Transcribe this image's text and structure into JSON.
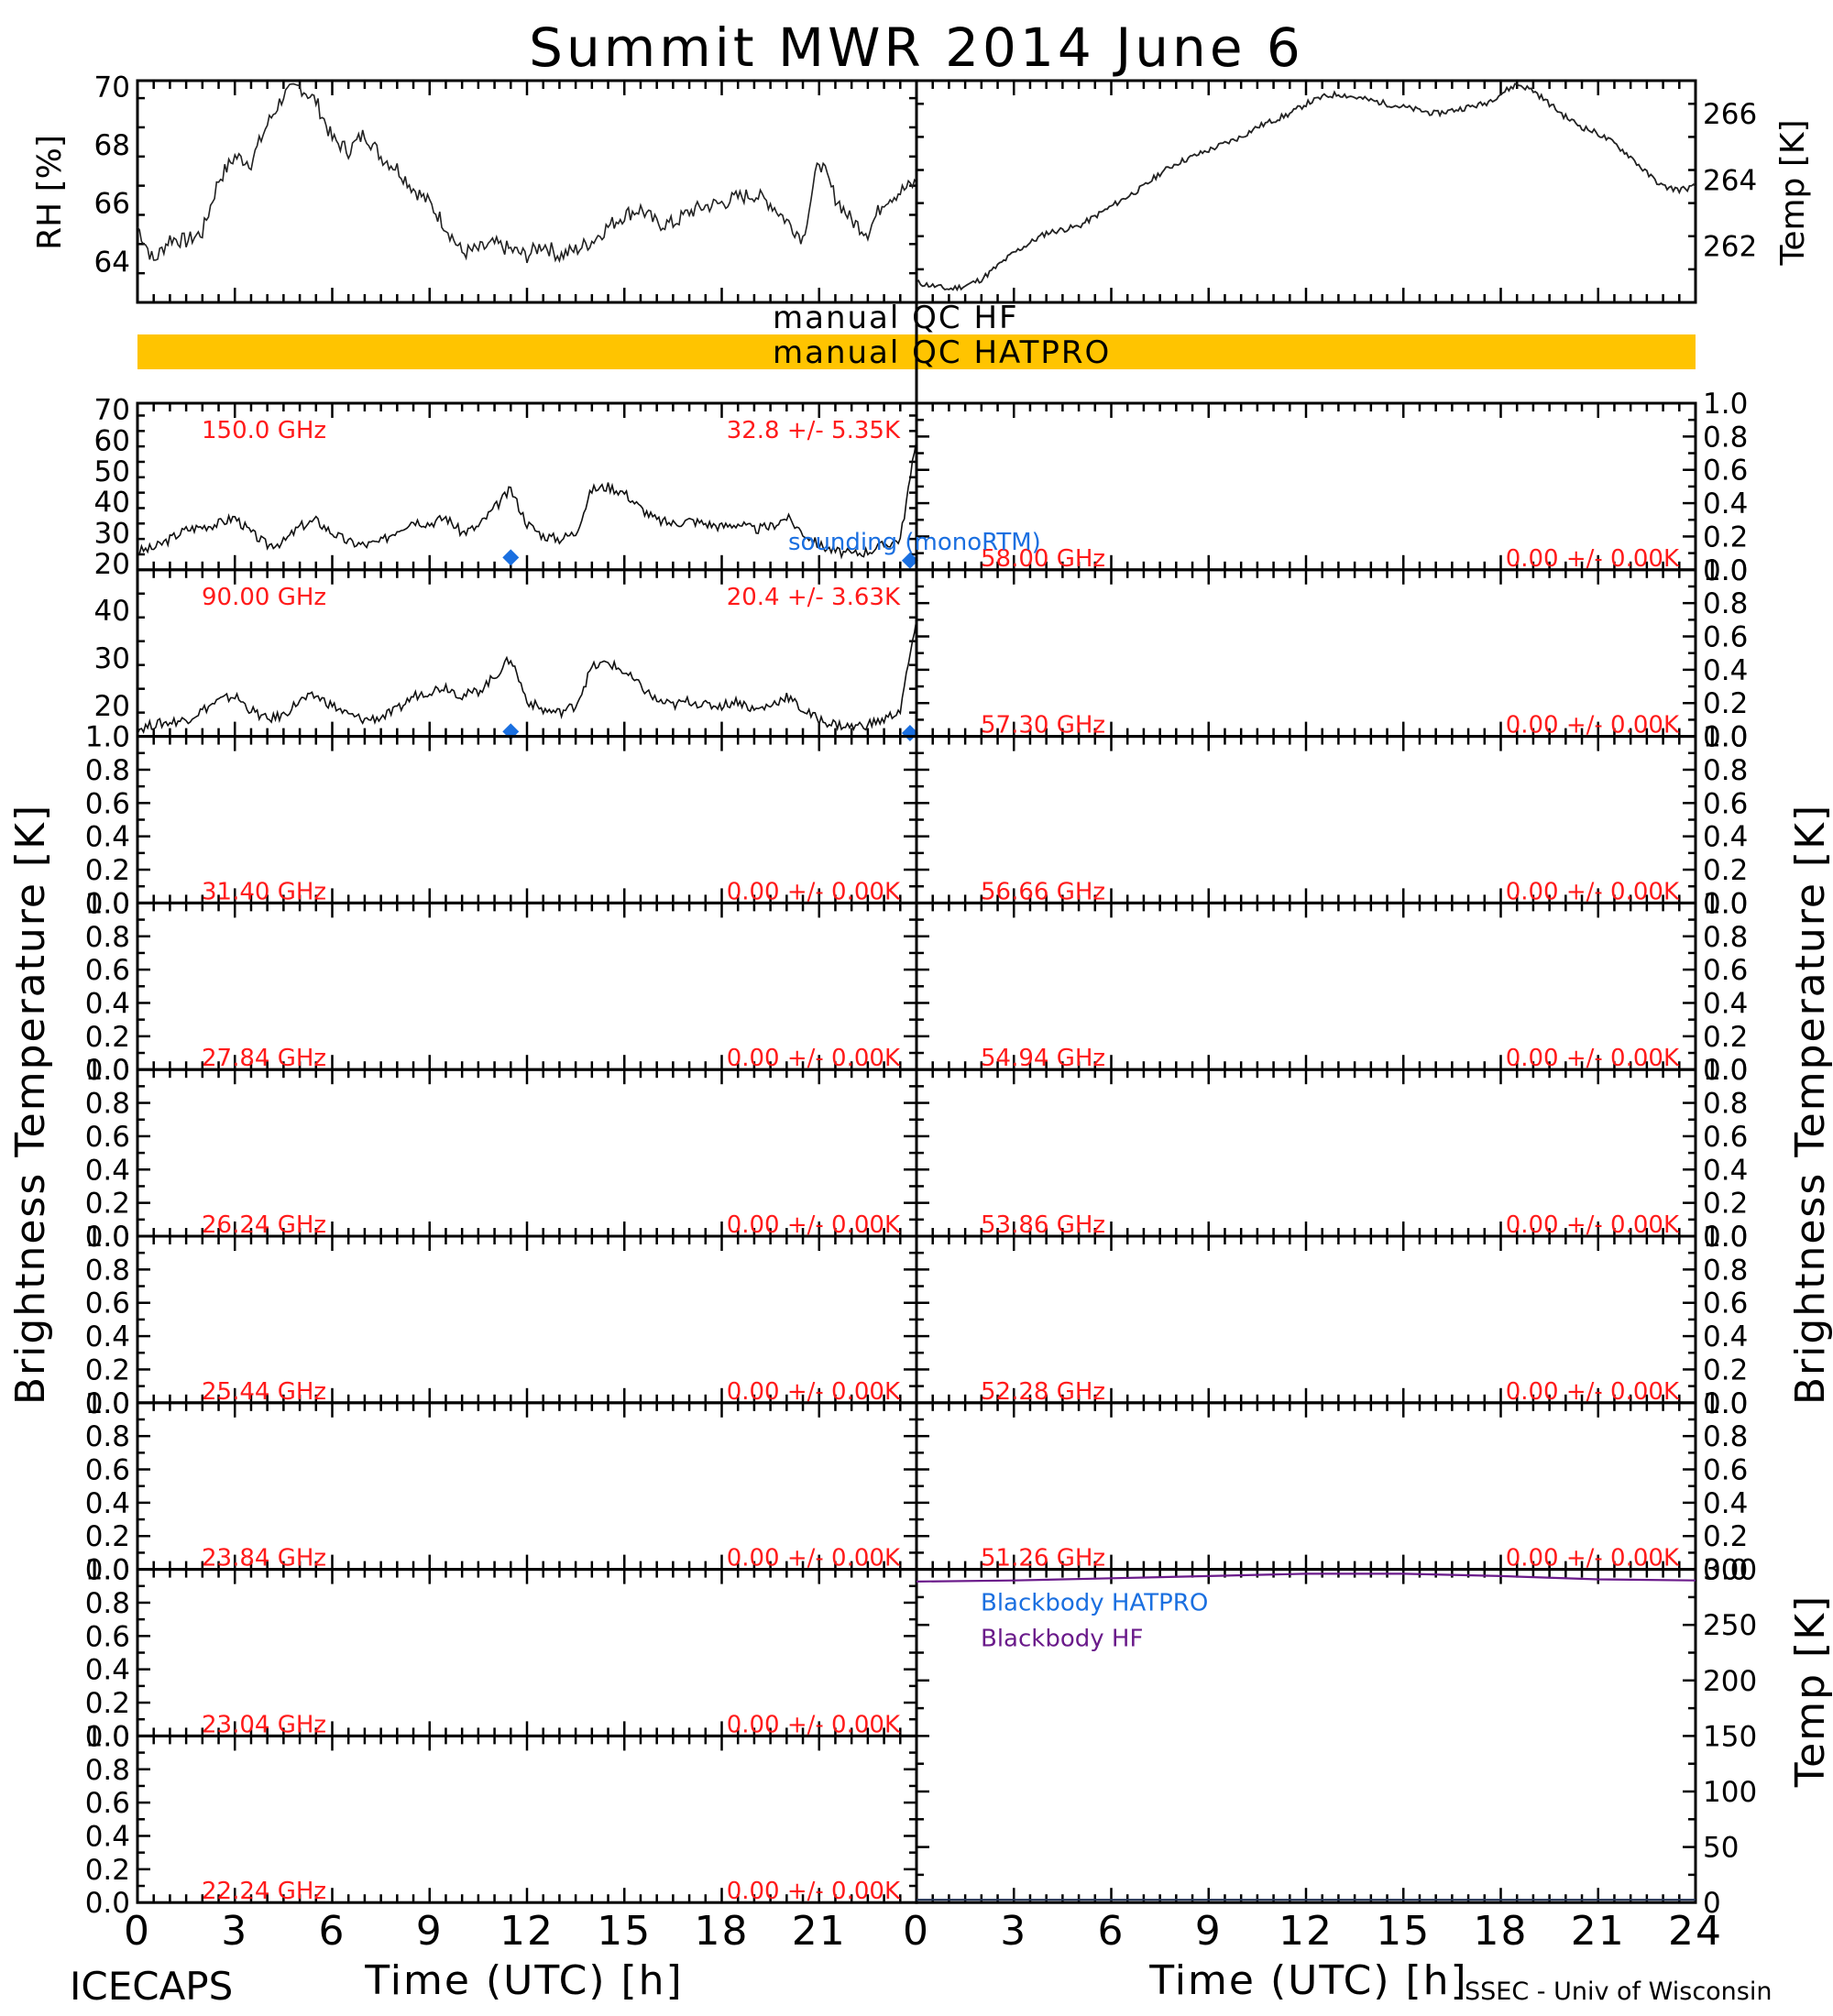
{
  "title": "Summit MWR 2014 June  6",
  "footer_left": "ICECAPS",
  "footer_right": "SSEC - Univ of Wisconsin",
  "qc": {
    "hf": "manual QC HF",
    "hatpro": "manual QC HATPRO",
    "bar_color": "#ffc400"
  },
  "axes": {
    "time_label": "Time (UTC) [h]",
    "time_ticks": [
      "0",
      "3",
      "6",
      "9",
      "12",
      "15",
      "18",
      "21"
    ],
    "time_ticks_right": [
      "0",
      "3",
      "6",
      "9",
      "12",
      "15",
      "18",
      "21",
      "24"
    ],
    "rh_label": "RH [%]",
    "temp_label": "Temp [K]",
    "tb_label": "Brightness Temperature [K]",
    "bb_temp_label": "Temp [K]"
  },
  "legend": {
    "sounding": "sounding (monoRTM)",
    "sounding_color": "#1a6fe0",
    "bb_hatpro": "Blackbody HATPRO",
    "bb_hatpro_color": "#1a6fe0",
    "bb_hf": "Blackbody HF",
    "bb_hf_color": "#6a1a8a"
  },
  "chart_data": [
    {
      "type": "line",
      "panel": "surface",
      "series": [
        {
          "name": "RH",
          "x": [
            0,
            0.5,
            1,
            1.5,
            2,
            2.5,
            3,
            3.5,
            4,
            4.5,
            5,
            5.5,
            6,
            6.5,
            7,
            7.5,
            8,
            8.5,
            9,
            9.5,
            10,
            10.5,
            11,
            11.5,
            12,
            12.5,
            13,
            13.5,
            14,
            14.5,
            15,
            15.5,
            16,
            16.5,
            17,
            17.5,
            18,
            18.5,
            19,
            19.5,
            20,
            20.5,
            21,
            21.5,
            22,
            22.5,
            23,
            23.5,
            24
          ],
          "values": [
            65.2,
            64.0,
            64.8,
            64.7,
            65.0,
            66.8,
            67.6,
            67.4,
            68.7,
            69.7,
            70.0,
            69.5,
            68.2,
            67.8,
            68.4,
            67.6,
            67.2,
            66.5,
            66.0,
            65.2,
            64.3,
            64.4,
            64.6,
            64.4,
            64.2,
            64.6,
            64.2,
            64.4,
            64.7,
            65.2,
            65.6,
            65.8,
            65.3,
            65.3,
            65.7,
            65.9,
            66.0,
            66.2,
            66.3,
            66.0,
            65.4,
            64.8,
            67.5,
            66.2,
            65.4,
            65.0,
            66.1,
            66.4,
            66.7
          ],
          "ylim": [
            62.6,
            70.2
          ],
          "yticks": [
            64,
            66,
            68,
            70
          ]
        },
        {
          "name": "Temp",
          "x": [
            0,
            0.5,
            1,
            1.5,
            2,
            2.5,
            3,
            3.5,
            4,
            4.5,
            5,
            5.5,
            6,
            6.5,
            7,
            7.5,
            8,
            8.5,
            9,
            9.5,
            10,
            10.5,
            11,
            11.5,
            12,
            12.5,
            13,
            13.5,
            14,
            14.5,
            15,
            15.5,
            16,
            16.5,
            17,
            17.5,
            18,
            18.5,
            19,
            19.5,
            20,
            20.5,
            21,
            21.5,
            22,
            22.5,
            23,
            23.5,
            24
          ],
          "values": [
            260.9,
            260.8,
            260.7,
            260.8,
            261.0,
            261.4,
            261.8,
            262.1,
            262.4,
            262.5,
            262.6,
            262.9,
            263.2,
            263.5,
            263.8,
            264.2,
            264.5,
            264.7,
            264.9,
            265.1,
            265.3,
            265.6,
            265.8,
            266.0,
            266.3,
            266.5,
            266.6,
            266.5,
            266.4,
            266.3,
            266.2,
            266.1,
            266.0,
            266.1,
            266.2,
            266.3,
            266.6,
            266.9,
            266.7,
            266.3,
            265.9,
            265.6,
            265.4,
            265.1,
            264.7,
            264.2,
            263.8,
            263.7,
            263.8
          ],
          "ylim": [
            260.3,
            267.0
          ],
          "yticks": [
            262,
            264,
            266
          ]
        }
      ],
      "xlim": [
        0,
        24
      ]
    },
    {
      "type": "line",
      "panel": "brightness-temperature",
      "ylabel": "Brightness Temperature [K]",
      "xlabel": "Time (UTC) [h]",
      "channels_left": [
        {
          "freq": "150.0 GHz",
          "stats": "32.8 +/-  5.35K",
          "ylim": [
            18,
            72
          ],
          "yticks": [
            "20",
            "30",
            "40",
            "50",
            "60",
            "70"
          ],
          "x": [
            0,
            0.5,
            1,
            1.5,
            2,
            2.5,
            3,
            3.5,
            4,
            4.5,
            5,
            5.5,
            6,
            6.5,
            7,
            7.5,
            8,
            8.5,
            9,
            9.5,
            10,
            10.5,
            11,
            11.5,
            12,
            12.5,
            13,
            13.5,
            14,
            14.5,
            15,
            15.5,
            16,
            16.5,
            17,
            17.5,
            18,
            18.5,
            19,
            19.5,
            20,
            20.5,
            21,
            21.5,
            22,
            22.5,
            23,
            23.5,
            24
          ],
          "values": [
            24,
            25,
            28,
            31,
            32,
            33,
            35,
            30,
            26,
            27,
            32,
            34,
            30,
            27,
            26,
            27,
            31,
            34,
            33,
            35,
            30,
            32,
            38,
            44,
            33,
            29,
            28,
            30,
            44,
            45,
            43,
            38,
            34,
            33,
            34,
            33,
            32,
            33,
            31,
            32,
            35,
            30,
            26,
            24,
            23,
            24,
            26,
            28,
            60
          ],
          "sounding_points": [
            {
              "x": 11.5,
              "y": 22
            },
            {
              "x": 23.8,
              "y": 21
            }
          ]
        },
        {
          "freq": "90.00 GHz",
          "stats": "20.4 +/-  3.63K",
          "ylim": [
            13.5,
            48.5
          ],
          "yticks": [
            "20",
            "30",
            "40"
          ],
          "x": [
            0,
            0.5,
            1,
            1.5,
            2,
            2.5,
            3,
            3.5,
            4,
            4.5,
            5,
            5.5,
            6,
            6.5,
            7,
            7.5,
            8,
            8.5,
            9,
            9.5,
            10,
            10.5,
            11,
            11.5,
            12,
            12.5,
            13,
            13.5,
            14,
            14.5,
            15,
            15.5,
            16,
            16.5,
            17,
            17.5,
            18,
            18.5,
            19,
            19.5,
            20,
            20.5,
            21,
            21.5,
            22,
            22.5,
            23,
            23.5,
            24
          ],
          "values": [
            15,
            16,
            16.5,
            17,
            19,
            21,
            22,
            19,
            17,
            18,
            21,
            22,
            20,
            18,
            17,
            17.5,
            19,
            22,
            23,
            24,
            22,
            23,
            26,
            30,
            21,
            19,
            18.5,
            20,
            28,
            29,
            27,
            24,
            21,
            20,
            21,
            20,
            20,
            21,
            19,
            20,
            22,
            19,
            17,
            16,
            15.5,
            16,
            17,
            19,
            38
          ],
          "sounding_points": [
            {
              "x": 11.5,
              "y": 14.5
            },
            {
              "x": 23.8,
              "y": 14.2
            }
          ]
        },
        {
          "freq": "31.40 GHz",
          "stats": "0.00 +/-  0.00K",
          "ylim": [
            0,
            1
          ],
          "yticks": [
            "0.0",
            "0.2",
            "0.4",
            "0.6",
            "0.8",
            "1.0"
          ]
        },
        {
          "freq": "27.84 GHz",
          "stats": "0.00 +/-  0.00K",
          "ylim": [
            0,
            1
          ],
          "yticks": [
            "0.0",
            "0.2",
            "0.4",
            "0.6",
            "0.8",
            "1.0"
          ]
        },
        {
          "freq": "26.24 GHz",
          "stats": "0.00 +/-  0.00K",
          "ylim": [
            0,
            1
          ],
          "yticks": [
            "0.0",
            "0.2",
            "0.4",
            "0.6",
            "0.8",
            "1.0"
          ]
        },
        {
          "freq": "25.44 GHz",
          "stats": "0.00 +/-  0.00K",
          "ylim": [
            0,
            1
          ],
          "yticks": [
            "0.0",
            "0.2",
            "0.4",
            "0.6",
            "0.8",
            "1.0"
          ]
        },
        {
          "freq": "23.84 GHz",
          "stats": "0.00 +/-  0.00K",
          "ylim": [
            0,
            1
          ],
          "yticks": [
            "0.0",
            "0.2",
            "0.4",
            "0.6",
            "0.8",
            "1.0"
          ]
        },
        {
          "freq": "23.04 GHz",
          "stats": "0.00 +/-  0.00K",
          "ylim": [
            0,
            1
          ],
          "yticks": [
            "0.0",
            "0.2",
            "0.4",
            "0.6",
            "0.8",
            "1.0"
          ]
        },
        {
          "freq": "22.24 GHz",
          "stats": "0.00 +/-  0.00K",
          "ylim": [
            0,
            1
          ],
          "yticks": [
            "0.0",
            "0.2",
            "0.4",
            "0.6",
            "0.8",
            "1.0"
          ]
        }
      ],
      "channels_right": [
        {
          "freq": "58.00 GHz",
          "stats": "0.00 +/-  0.00K",
          "ylim": [
            0,
            1
          ],
          "yticks": [
            "0.0",
            "0.2",
            "0.4",
            "0.6",
            "0.8",
            "1.0"
          ]
        },
        {
          "freq": "57.30 GHz",
          "stats": "0.00 +/-  0.00K",
          "ylim": [
            0,
            1
          ],
          "yticks": [
            "0.0",
            "0.2",
            "0.4",
            "0.6",
            "0.8",
            "1.0"
          ]
        },
        {
          "freq": "56.66 GHz",
          "stats": "0.00 +/-  0.00K",
          "ylim": [
            0,
            1
          ],
          "yticks": [
            "0.0",
            "0.2",
            "0.4",
            "0.6",
            "0.8",
            "1.0"
          ]
        },
        {
          "freq": "54.94 GHz",
          "stats": "0.00 +/-  0.00K",
          "ylim": [
            0,
            1
          ],
          "yticks": [
            "0.0",
            "0.2",
            "0.4",
            "0.6",
            "0.8",
            "1.0"
          ]
        },
        {
          "freq": "53.86 GHz",
          "stats": "0.00 +/-  0.00K",
          "ylim": [
            0,
            1
          ],
          "yticks": [
            "0.0",
            "0.2",
            "0.4",
            "0.6",
            "0.8",
            "1.0"
          ]
        },
        {
          "freq": "52.28 GHz",
          "stats": "0.00 +/-  0.00K",
          "ylim": [
            0,
            1
          ],
          "yticks": [
            "0.0",
            "0.2",
            "0.4",
            "0.6",
            "0.8",
            "1.0"
          ]
        },
        {
          "freq": "51.26 GHz",
          "stats": "0.00 +/-  0.00K",
          "ylim": [
            0,
            1
          ],
          "yticks": [
            "0.0",
            "0.2",
            "0.4",
            "0.6",
            "0.8",
            "1.0"
          ]
        }
      ]
    },
    {
      "type": "line",
      "panel": "blackbody",
      "ylabel": "Temp [K]",
      "ylim": [
        0,
        300
      ],
      "yticks": [
        "0",
        "50",
        "100",
        "150",
        "200",
        "250",
        "300"
      ],
      "xlim": [
        0,
        24
      ],
      "series": [
        {
          "name": "Blackbody HF",
          "x": [
            0,
            3,
            6,
            9,
            12,
            15,
            18,
            21,
            24
          ],
          "values": [
            289,
            290,
            292,
            294,
            296,
            296,
            294,
            291,
            290
          ]
        },
        {
          "name": "Blackbody HATPRO",
          "x": [
            0,
            24
          ],
          "values": [
            0,
            0
          ]
        }
      ]
    }
  ]
}
